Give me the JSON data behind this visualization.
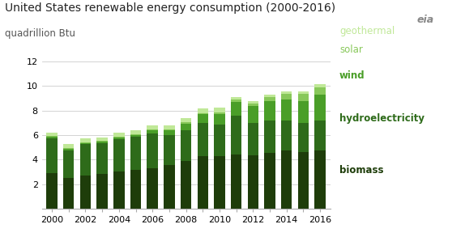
{
  "years": [
    2000,
    2001,
    2002,
    2003,
    2004,
    2005,
    2006,
    2007,
    2008,
    2009,
    2010,
    2011,
    2012,
    2013,
    2014,
    2015,
    2016
  ],
  "biomass": [
    2.92,
    2.51,
    2.69,
    2.81,
    3.0,
    3.15,
    3.27,
    3.57,
    3.88,
    4.28,
    4.29,
    4.39,
    4.32,
    4.58,
    4.73,
    4.63,
    4.72
  ],
  "hydroelectricity": [
    2.81,
    2.24,
    2.56,
    2.53,
    2.69,
    2.7,
    2.87,
    2.46,
    2.51,
    2.69,
    2.54,
    3.17,
    2.67,
    2.6,
    2.47,
    2.39,
    2.5
  ],
  "wind": [
    0.11,
    0.12,
    0.1,
    0.11,
    0.14,
    0.18,
    0.26,
    0.34,
    0.55,
    0.72,
    0.92,
    1.17,
    1.36,
    1.6,
    1.73,
    1.78,
    2.1
  ],
  "solar": [
    0.07,
    0.07,
    0.07,
    0.06,
    0.06,
    0.06,
    0.07,
    0.08,
    0.09,
    0.09,
    0.11,
    0.16,
    0.23,
    0.34,
    0.43,
    0.58,
    0.59
  ],
  "geothermal": [
    0.32,
    0.31,
    0.31,
    0.31,
    0.31,
    0.31,
    0.35,
    0.35,
    0.35,
    0.37,
    0.37,
    0.21,
    0.21,
    0.21,
    0.21,
    0.22,
    0.22
  ],
  "colors": {
    "biomass": "#1e3d0a",
    "hydroelectricity": "#2e6b1a",
    "wind": "#4a9e28",
    "solar": "#88c85a",
    "geothermal": "#c0e898"
  },
  "title": "United States renewable energy consumption (2000-2016)",
  "subtitle": "quadrillion Btu",
  "ylim": [
    0,
    12
  ],
  "yticks": [
    0,
    2,
    4,
    6,
    8,
    10,
    12
  ],
  "legend_labels": [
    "geothermal",
    "solar",
    "wind",
    "hydroelectricity",
    "biomass"
  ],
  "legend_colors": [
    "#c0e898",
    "#88c85a",
    "#4a9e28",
    "#2e6b1a",
    "#1e3d0a"
  ],
  "legend_bold": [
    false,
    false,
    true,
    true,
    true
  ],
  "legend_sizes": [
    8.5,
    8.5,
    8.5,
    8.5,
    8.5
  ],
  "background_color": "#ffffff",
  "title_fontsize": 10,
  "subtitle_fontsize": 8.5,
  "bar_width": 0.65
}
